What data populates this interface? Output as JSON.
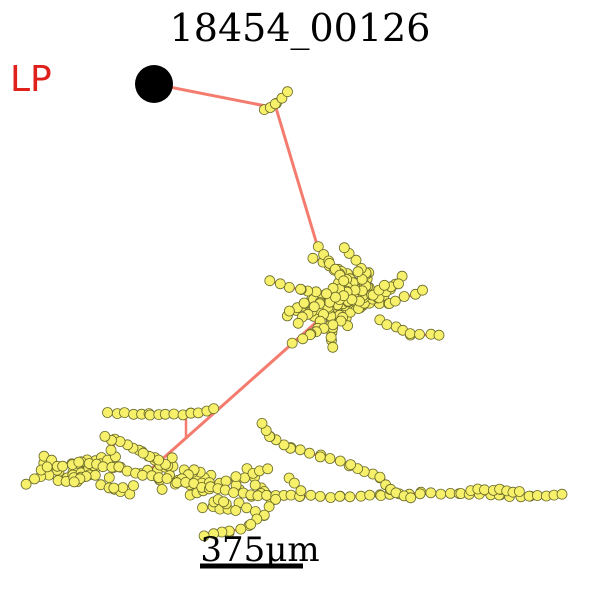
{
  "figure": {
    "title": "18454_00126",
    "corner_label": "LP",
    "scale_bar_label": "375μm"
  },
  "colors": {
    "branch": "#f47c6f",
    "node_fill": "#f7f06a",
    "node_stroke": "#6b6b2a",
    "soma": "#000000",
    "corner_label": "#e0201b",
    "scale_bar": "#000000"
  }
}
